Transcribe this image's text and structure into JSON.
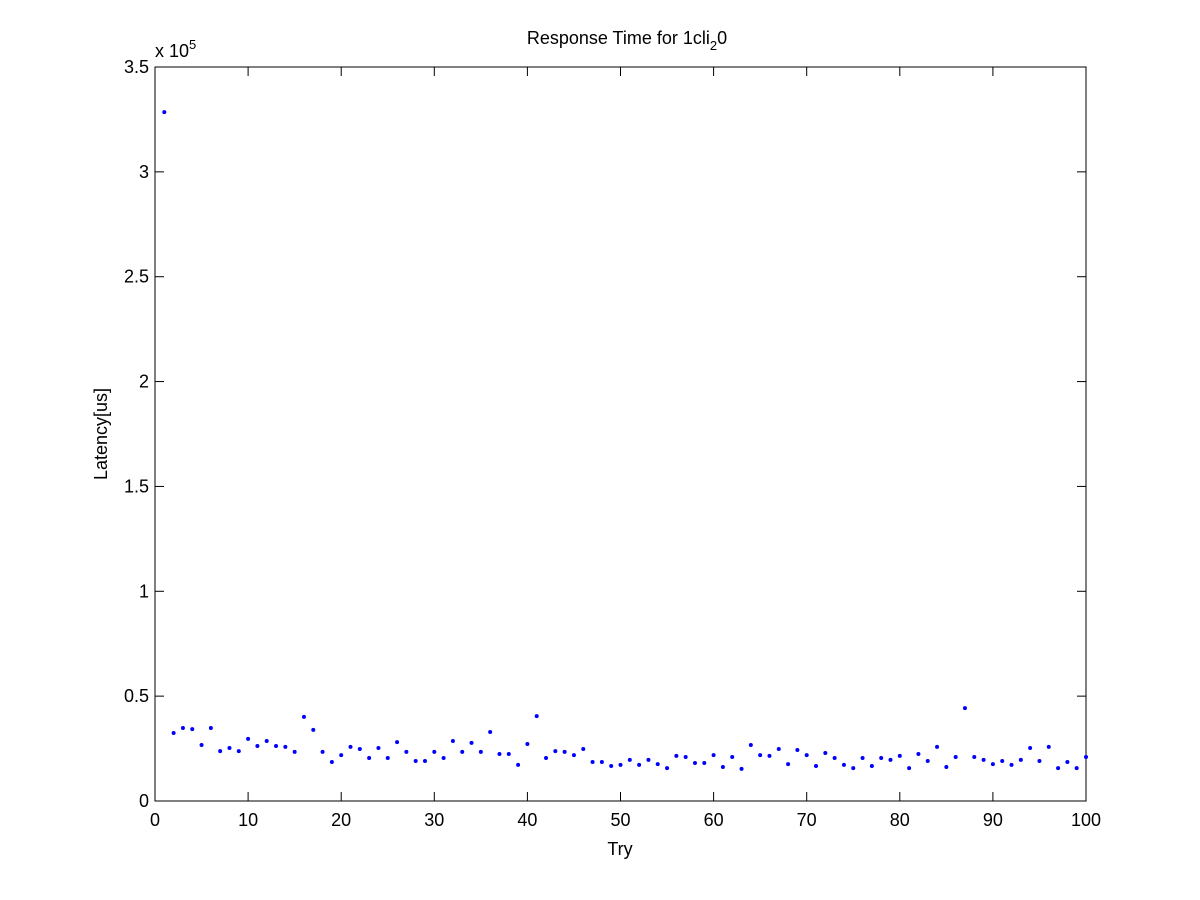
{
  "chart_data": {
    "type": "scatter",
    "title": {
      "text": "Response Time for 1cli",
      "subscript": "2",
      "suffix": "0"
    },
    "x_label": "Try",
    "y_label": "Latency[us]",
    "y_multiplier": {
      "base": "x 10",
      "exponent": "5"
    },
    "color": "#0000ff",
    "x": [
      1,
      2,
      3,
      4,
      5,
      6,
      7,
      8,
      9,
      10,
      11,
      12,
      13,
      14,
      15,
      16,
      17,
      18,
      19,
      20,
      21,
      22,
      23,
      24,
      25,
      26,
      27,
      28,
      29,
      30,
      31,
      32,
      33,
      34,
      35,
      36,
      37,
      38,
      39,
      40,
      41,
      42,
      43,
      44,
      45,
      46,
      47,
      48,
      49,
      50,
      51,
      52,
      53,
      54,
      55,
      56,
      57,
      58,
      59,
      60,
      61,
      62,
      63,
      64,
      65,
      66,
      67,
      68,
      69,
      70,
      71,
      72,
      73,
      74,
      75,
      76,
      77,
      78,
      79,
      80,
      81,
      82,
      83,
      84,
      85,
      86,
      87,
      88,
      89,
      90,
      91,
      92,
      93,
      94,
      95,
      96,
      97,
      98,
      99,
      100
    ],
    "values": [
      3.285,
      0.324,
      0.348,
      0.343,
      0.267,
      0.348,
      0.238,
      0.253,
      0.238,
      0.296,
      0.262,
      0.286,
      0.262,
      0.258,
      0.234,
      0.401,
      0.339,
      0.234,
      0.186,
      0.219,
      0.258,
      0.248,
      0.205,
      0.253,
      0.205,
      0.281,
      0.234,
      0.191,
      0.191,
      0.234,
      0.205,
      0.286,
      0.234,
      0.277,
      0.234,
      0.329,
      0.224,
      0.224,
      0.172,
      0.272,
      0.405,
      0.205,
      0.238,
      0.234,
      0.219,
      0.248,
      0.186,
      0.186,
      0.167,
      0.172,
      0.196,
      0.172,
      0.196,
      0.176,
      0.157,
      0.215,
      0.21,
      0.181,
      0.181,
      0.219,
      0.162,
      0.21,
      0.153,
      0.267,
      0.219,
      0.215,
      0.248,
      0.176,
      0.243,
      0.219,
      0.167,
      0.229,
      0.205,
      0.172,
      0.157,
      0.205,
      0.167,
      0.205,
      0.196,
      0.215,
      0.157,
      0.224,
      0.191,
      0.258,
      0.162,
      0.21,
      0.443,
      0.21,
      0.196,
      0.176,
      0.191,
      0.172,
      0.196,
      0.253,
      0.191,
      0.258,
      0.157,
      0.186,
      0.157,
      0.21
    ],
    "xlim": [
      0,
      100
    ],
    "xticks": [
      0,
      10,
      20,
      30,
      40,
      50,
      60,
      70,
      80,
      90,
      100
    ],
    "ylim": [
      0,
      3.5
    ],
    "yticks": [
      0,
      0.5,
      1,
      1.5,
      2,
      2.5,
      3,
      3.5
    ],
    "grid": false
  }
}
